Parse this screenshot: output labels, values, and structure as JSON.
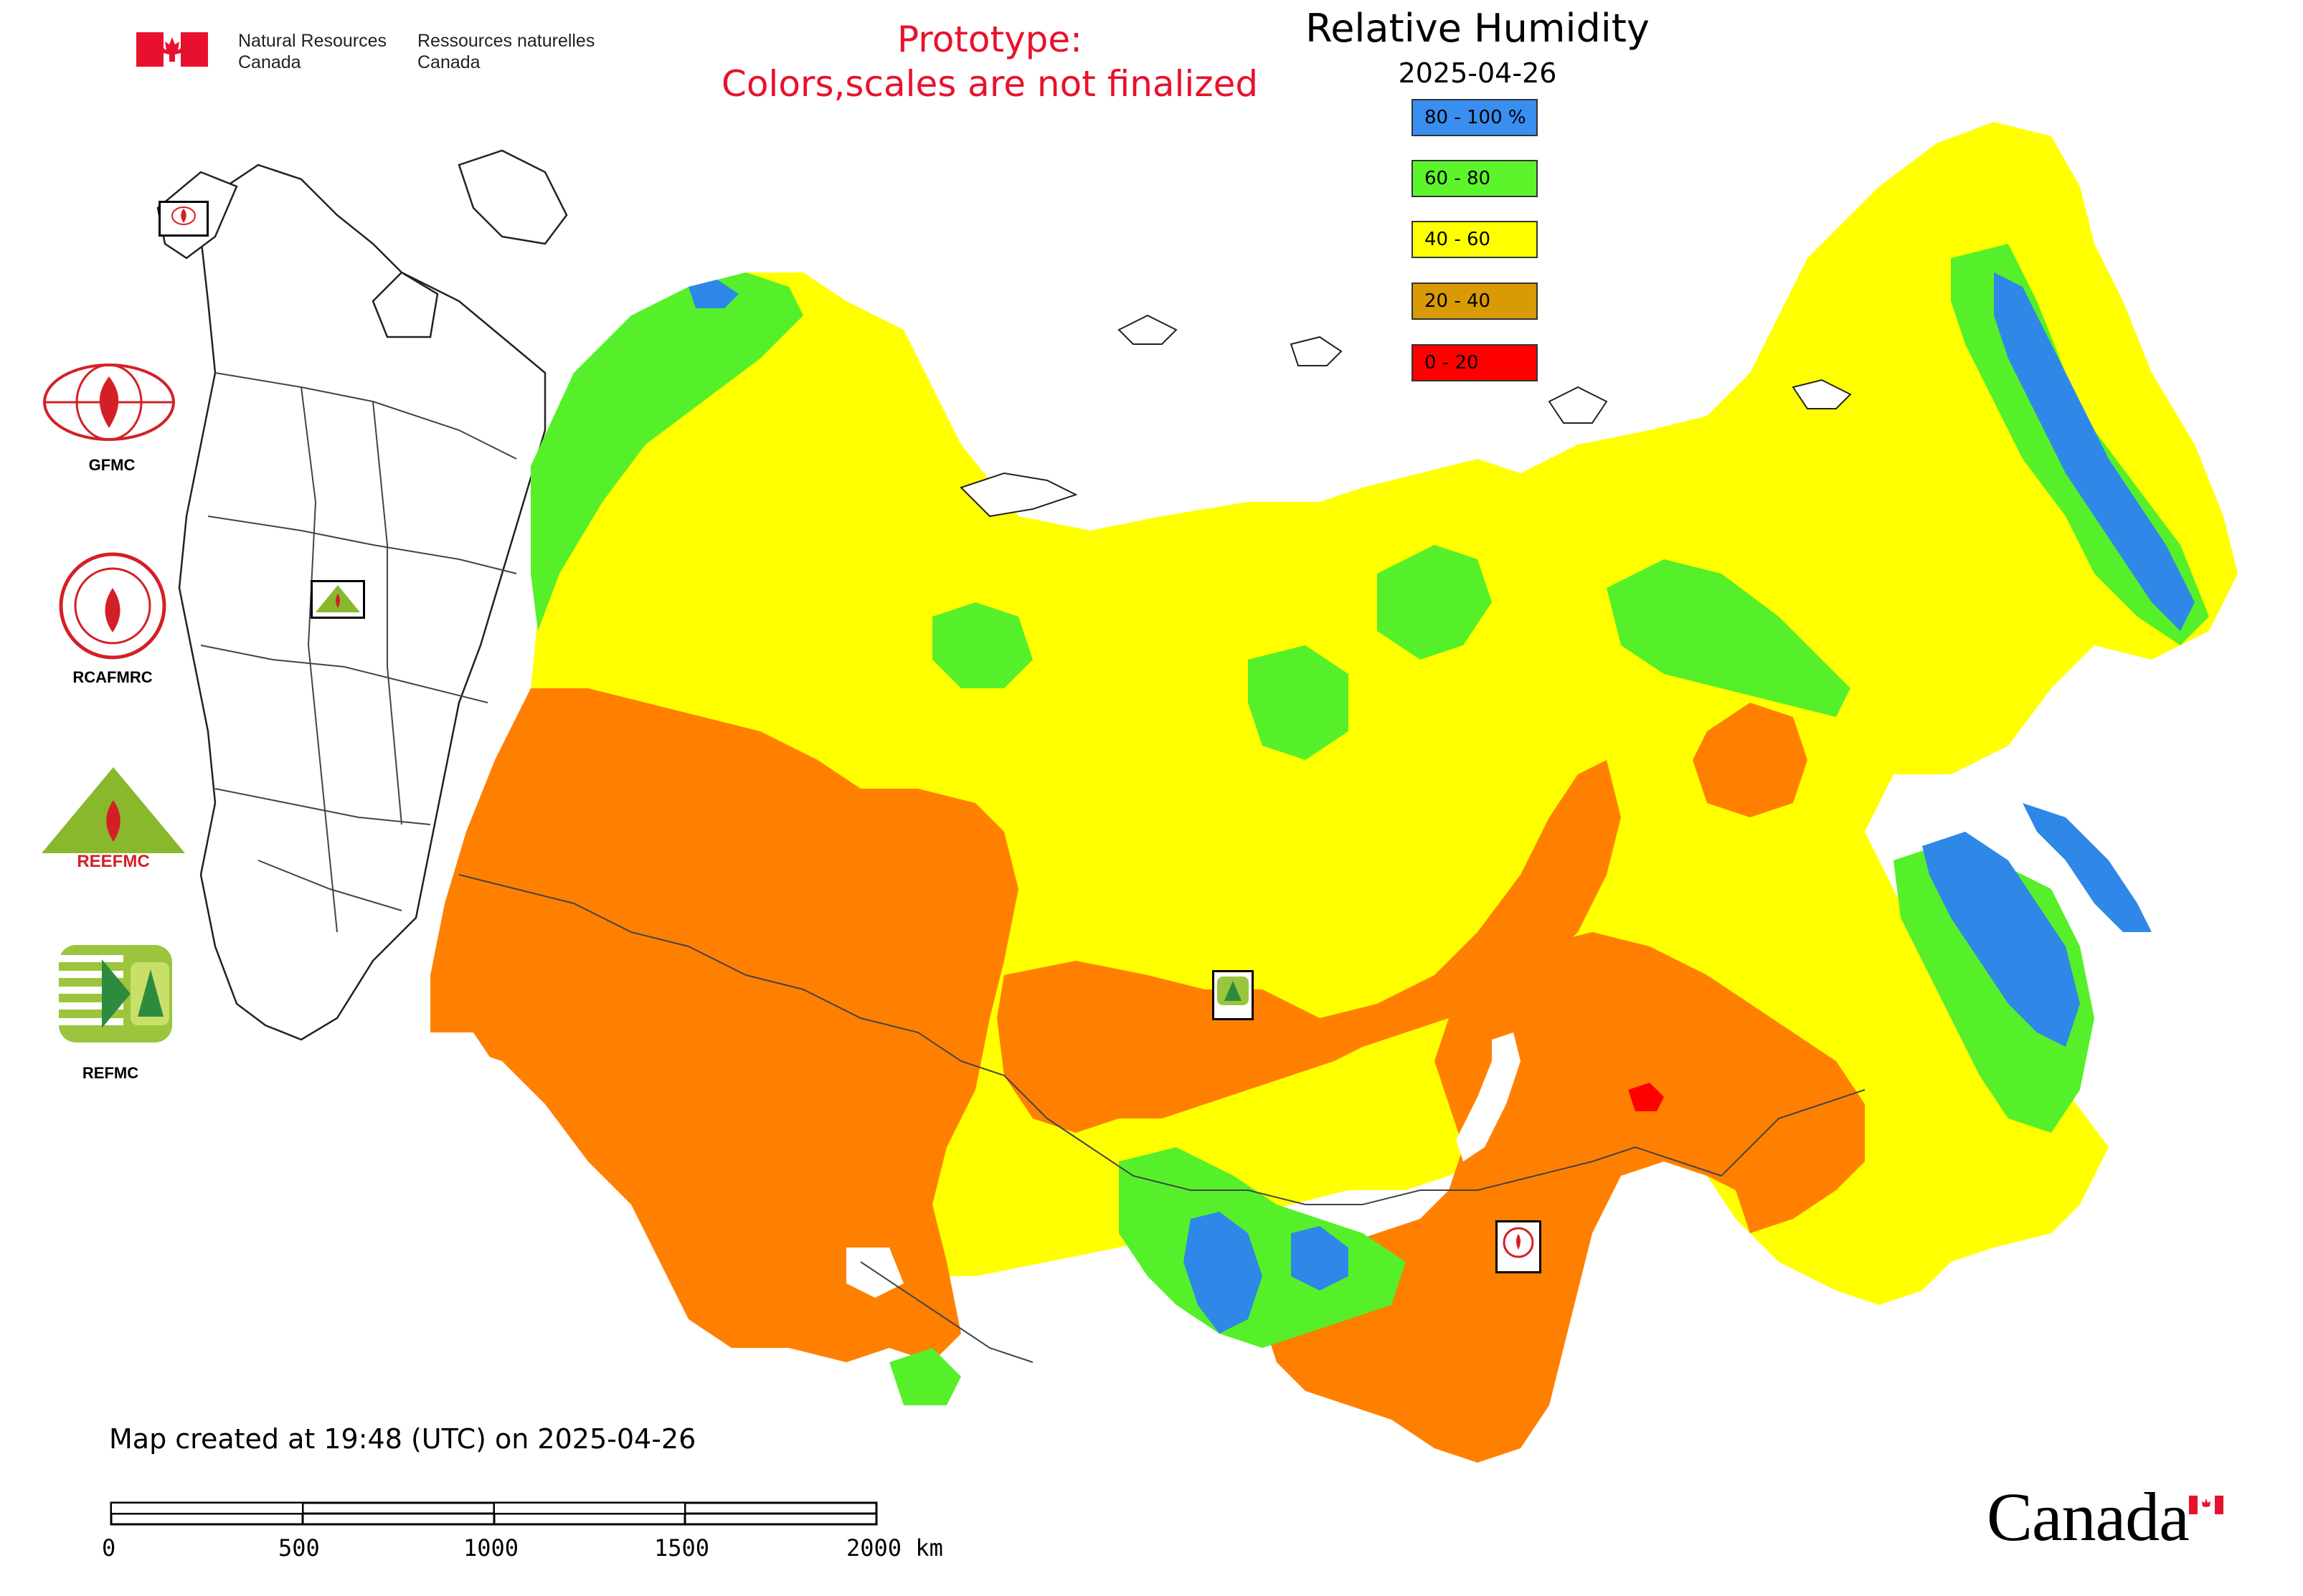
{
  "header": {
    "org_en_line1": "Natural Resources",
    "org_en_line2": "Canada",
    "org_fr_line1": "Ressources naturelles",
    "org_fr_line2": "Canada",
    "prototype_line1": "Prototype:",
    "prototype_line2": "Colors,scales are not finalized"
  },
  "legend": {
    "title": "Relative Humidity",
    "date": "2025-04-26",
    "classes": [
      {
        "label": "80 - 100 %",
        "color": "#3a8ef0"
      },
      {
        "label": "60 - 80",
        "color": "#5cf52b"
      },
      {
        "label": "40 - 60",
        "color": "#ffff00"
      },
      {
        "label": "20 - 40",
        "color": "#d89a05"
      },
      {
        "label": "0 - 20",
        "color": "#ff0000"
      }
    ]
  },
  "map_colors": {
    "very_humid": "#2f87e8",
    "humid": "#55f02a",
    "moderate": "#ffff00",
    "dry": "#ff8000",
    "very_dry": "#ff0000",
    "boundary": "#555555"
  },
  "logos": {
    "gfmc": "GFMC",
    "rcafmrc": "RCAFMRC",
    "reefmc": "REEFMC",
    "refmc": "REFMC",
    "map_marker_gfmc": "GFMC",
    "map_marker_refmc": "REFMC",
    "map_marker_rcafmrc": "RCAFMRC"
  },
  "footer": {
    "created_note": "Map created at 19:48 (UTC) on 2025-04-26",
    "scale_labels": [
      "0",
      "500",
      "1000",
      "1500",
      "2000 km"
    ],
    "wordmark": "Canada"
  }
}
